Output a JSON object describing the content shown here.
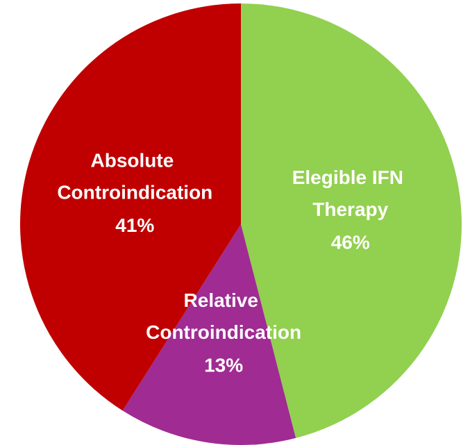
{
  "chart_data": {
    "type": "pie",
    "categories": [
      "Elegible IFN Therapy",
      "Relative Controindication",
      "Absolute Controindication"
    ],
    "values": [
      46,
      13,
      41
    ],
    "value_labels": [
      "46%",
      "13%",
      "41%"
    ],
    "colors": [
      "#92d050",
      "#a02b93",
      "#c00000"
    ]
  }
}
